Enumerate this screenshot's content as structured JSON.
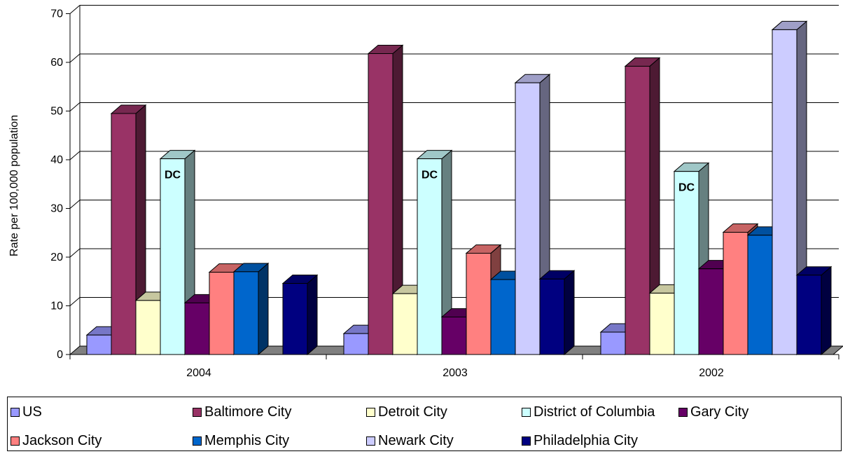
{
  "chart_data": {
    "type": "bar",
    "categories": [
      "2004",
      "2003",
      "2002"
    ],
    "ylabel": "Rate per 100,000 population",
    "ylim": [
      0,
      70
    ],
    "yticks": [
      "0",
      "10",
      "20",
      "30",
      "40",
      "50",
      "60",
      "70"
    ],
    "grid": true,
    "legend_position": "bottom",
    "series": [
      {
        "name": "US",
        "color": "#9999FF",
        "values": [
          4.0,
          4.3,
          4.6
        ]
      },
      {
        "name": "Baltimore City",
        "color": "#993366",
        "values": [
          49.5,
          61.8,
          59.2
        ]
      },
      {
        "name": "Detroit City",
        "color": "#FFFFCC",
        "values": [
          11.1,
          12.5,
          12.6
        ]
      },
      {
        "name": "District of Columbia",
        "color": "#CCFFFF",
        "values": [
          40.2,
          40.2,
          37.6
        ]
      },
      {
        "name": "Gary City",
        "color": "#660066",
        "values": [
          10.6,
          7.7,
          17.6
        ]
      },
      {
        "name": "Jackson City",
        "color": "#FF8080",
        "values": [
          16.9,
          20.8,
          25.1
        ]
      },
      {
        "name": "Memphis City",
        "color": "#0066CC",
        "values": [
          17.0,
          15.4,
          24.5
        ]
      },
      {
        "name": "Newark City",
        "color": "#CCCCFF",
        "values": [
          0,
          55.8,
          66.7
        ]
      },
      {
        "name": "Philadelphia City",
        "color": "#000080",
        "values": [
          14.6,
          15.5,
          16.3
        ]
      }
    ],
    "annotations": [
      {
        "text": "DC",
        "category": "2004"
      },
      {
        "text": "DC",
        "category": "2003"
      },
      {
        "text": "DC",
        "category": "2002"
      }
    ]
  }
}
